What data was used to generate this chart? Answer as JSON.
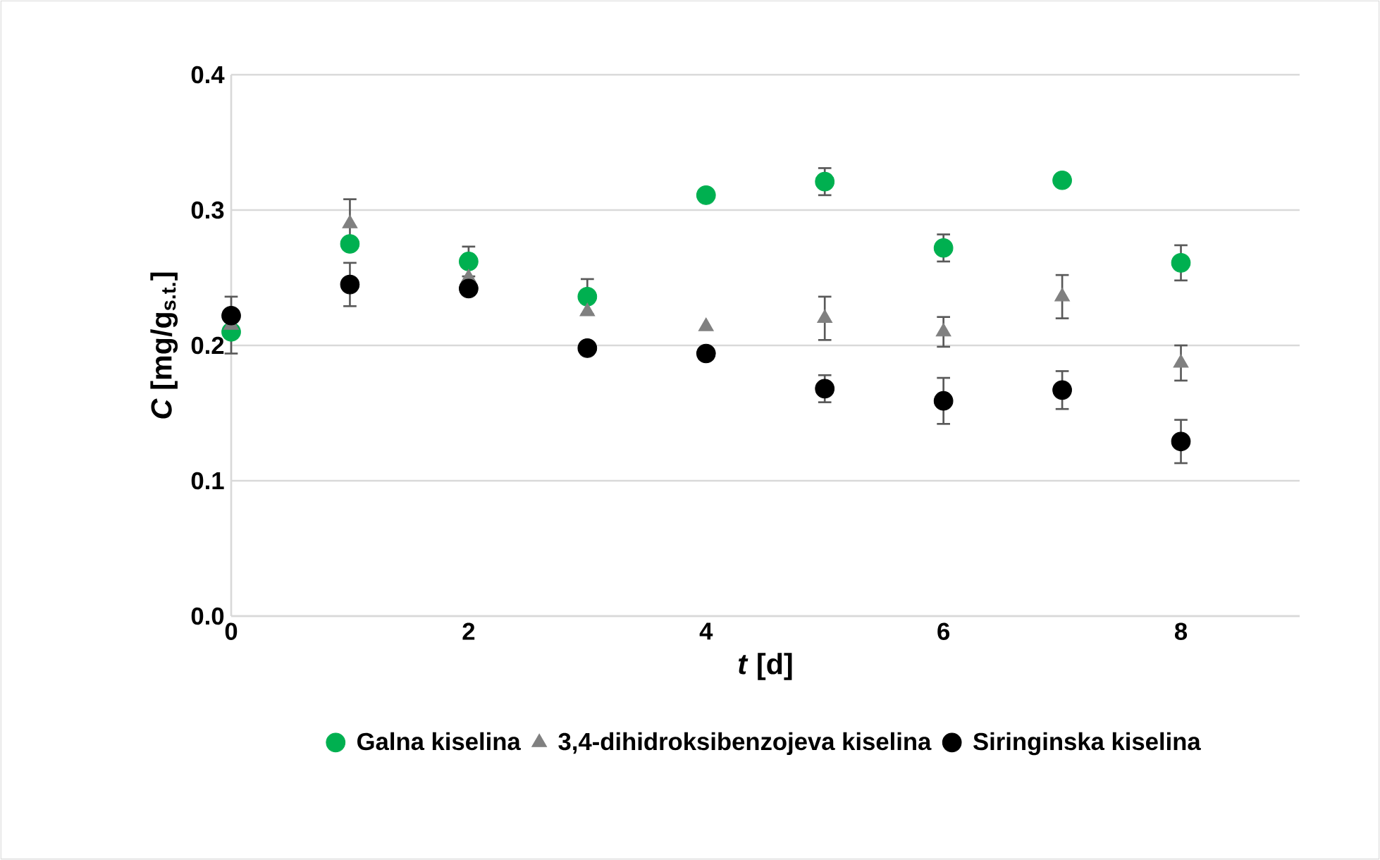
{
  "chart_data": {
    "type": "scatter",
    "xlabel": "*t* [d]",
    "ylabel": "*C* [mg/g$_{s.t.}$]",
    "x": [
      0,
      1,
      2,
      3,
      4,
      5,
      6,
      7,
      8
    ],
    "xlim": [
      0,
      9
    ],
    "xticks": [
      0,
      2,
      4,
      6,
      8
    ],
    "ylim": [
      0,
      0.4
    ],
    "yticks": [
      {
        "value": 0,
        "label": "0.0"
      },
      0.1,
      0.2,
      0.3,
      0.4
    ],
    "grid": "y",
    "legend": "bottom",
    "series": [
      {
        "name": "Galna kiselina",
        "color": "#00b050",
        "marker": "circle",
        "values": [
          0.21,
          0.275,
          0.262,
          0.236,
          0.311,
          0.321,
          0.272,
          0.322,
          0.261
        ],
        "errors": [
          null,
          null,
          0.011,
          0.013,
          null,
          0.01,
          0.01,
          null,
          0.013
        ]
      },
      {
        "name": "3,4-dihidroksibenzojeva kiselina",
        "color": "#808080",
        "marker": "triangle",
        "values": [
          0.215,
          0.29,
          0.25,
          0.225,
          0.214,
          0.22,
          0.21,
          0.236,
          0.187
        ],
        "errors": [
          0.021,
          0.018,
          null,
          null,
          null,
          0.016,
          0.011,
          0.016,
          0.013
        ]
      },
      {
        "name": "Siringinska kiselina",
        "color": "#000000",
        "marker": "circle",
        "values": [
          0.222,
          0.245,
          0.242,
          0.198,
          0.194,
          0.168,
          0.159,
          0.167,
          0.129
        ],
        "errors": [
          null,
          0.016,
          null,
          null,
          null,
          0.01,
          0.017,
          0.014,
          0.016
        ]
      }
    ]
  }
}
